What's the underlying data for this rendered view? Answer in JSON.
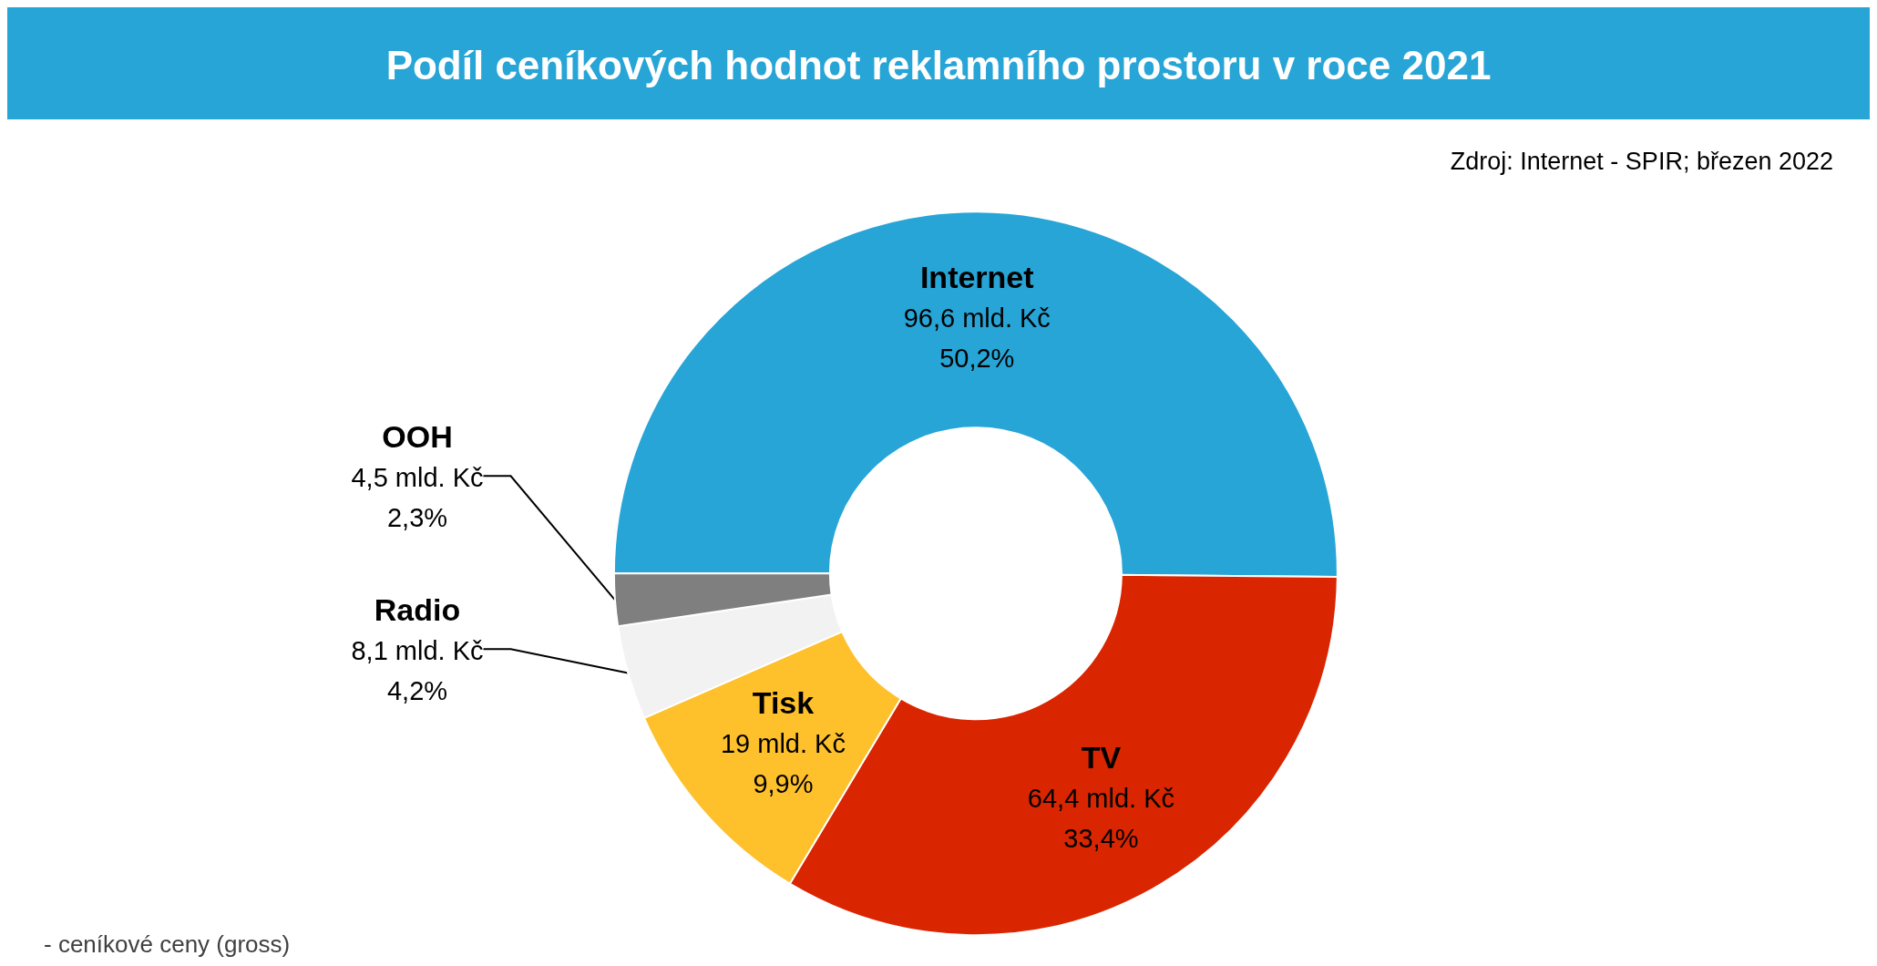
{
  "chart_data": {
    "type": "donut",
    "title": "Podíl ceníkových hodnot reklamního prostoru v roce 2021",
    "categories": [
      "Internet",
      "TV",
      "Tisk",
      "Radio",
      "OOH"
    ],
    "values": [
      96.6,
      64.4,
      19,
      8.1,
      4.5
    ],
    "colors": [
      "#27a5d6",
      "#d92600",
      "#fec02b",
      "#f2f2f2",
      "#7f7f7f"
    ],
    "value_labels": [
      "96,6 mld. Kč\n50,2%",
      "64,4 mld. Kč\n33,4%",
      "19 mld. Kč\n9,9%",
      "8,1 mld. Kč\n4,2%",
      "4,5 mld. Kč\n2,3%"
    ],
    "annotations": [
      "Zdroj: Internet - SPIR; březen 2022",
      "- ceníkové ceny (gross)"
    ]
  }
}
